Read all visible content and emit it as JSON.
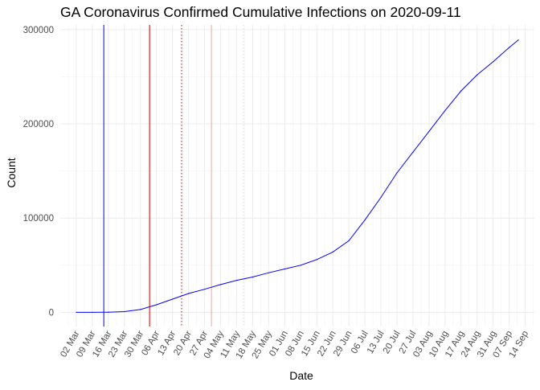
{
  "chart_data": {
    "type": "line",
    "title": "GA Coronavirus Confirmed Cumulative Infections on 2020-09-11",
    "xlabel": "Date",
    "ylabel": "Count",
    "x_range": [
      "2020-02-24",
      "2020-09-18"
    ],
    "ylim": [
      -15000,
      305000
    ],
    "grid": true,
    "legend": "none",
    "x_ticks": [
      {
        "date": "2020-03-02",
        "label": "02 Mar"
      },
      {
        "date": "2020-03-09",
        "label": "09 Mar"
      },
      {
        "date": "2020-03-16",
        "label": "16 Mar"
      },
      {
        "date": "2020-03-23",
        "label": "23 Mar"
      },
      {
        "date": "2020-03-30",
        "label": "30 Mar"
      },
      {
        "date": "2020-04-06",
        "label": "06 Apr"
      },
      {
        "date": "2020-04-13",
        "label": "13 Apr"
      },
      {
        "date": "2020-04-20",
        "label": "20 Apr"
      },
      {
        "date": "2020-04-27",
        "label": "27 Apr"
      },
      {
        "date": "2020-05-04",
        "label": "04 May"
      },
      {
        "date": "2020-05-11",
        "label": "11 May"
      },
      {
        "date": "2020-05-18",
        "label": "18 May"
      },
      {
        "date": "2020-05-25",
        "label": "25 May"
      },
      {
        "date": "2020-06-01",
        "label": "01 Jun"
      },
      {
        "date": "2020-06-08",
        "label": "08 Jun"
      },
      {
        "date": "2020-06-15",
        "label": "15 Jun"
      },
      {
        "date": "2020-06-22",
        "label": "22 Jun"
      },
      {
        "date": "2020-06-29",
        "label": "29 Jun"
      },
      {
        "date": "2020-07-06",
        "label": "06 Jul"
      },
      {
        "date": "2020-07-13",
        "label": "13 Jul"
      },
      {
        "date": "2020-07-20",
        "label": "20 Jul"
      },
      {
        "date": "2020-07-27",
        "label": "27 Jul"
      },
      {
        "date": "2020-08-03",
        "label": "03 Aug"
      },
      {
        "date": "2020-08-10",
        "label": "10 Aug"
      },
      {
        "date": "2020-08-17",
        "label": "17 Aug"
      },
      {
        "date": "2020-08-24",
        "label": "24 Aug"
      },
      {
        "date": "2020-08-31",
        "label": "31 Aug"
      },
      {
        "date": "2020-09-07",
        "label": "07 Sep"
      },
      {
        "date": "2020-09-14",
        "label": "14 Sep"
      }
    ],
    "y_ticks": [
      {
        "value": 0,
        "label": "0"
      },
      {
        "value": 100000,
        "label": "100000"
      },
      {
        "value": 200000,
        "label": "200000"
      },
      {
        "value": 300000,
        "label": "300000"
      }
    ],
    "series": [
      {
        "color": "#0000ff",
        "x": [
          "2020-03-02",
          "2020-03-09",
          "2020-03-16",
          "2020-03-23",
          "2020-03-30",
          "2020-04-06",
          "2020-04-13",
          "2020-04-20",
          "2020-04-27",
          "2020-05-04",
          "2020-05-11",
          "2020-05-18",
          "2020-05-25",
          "2020-06-01",
          "2020-06-08",
          "2020-06-15",
          "2020-06-22",
          "2020-06-29",
          "2020-07-06",
          "2020-07-13",
          "2020-07-20",
          "2020-07-27",
          "2020-08-03",
          "2020-08-10",
          "2020-08-17",
          "2020-08-24",
          "2020-08-31",
          "2020-09-07",
          "2020-09-11"
        ],
        "y": [
          0,
          20,
          150,
          800,
          3000,
          8000,
          14000,
          20000,
          24500,
          29500,
          34000,
          37500,
          42000,
          46000,
          50000,
          56000,
          64000,
          76000,
          98000,
          122000,
          148000,
          170000,
          192000,
          214000,
          235000,
          252000,
          266000,
          281000,
          289000
        ]
      }
    ],
    "annotations": [
      {
        "type": "vline",
        "date": "2020-03-14",
        "color": "#0000ff",
        "style": "solid"
      },
      {
        "type": "vline",
        "date": "2020-04-03",
        "color": "#cc0000",
        "style": "solid"
      },
      {
        "type": "vline",
        "date": "2020-04-17",
        "color": "#cc0000",
        "style": "dotted"
      },
      {
        "type": "vline",
        "date": "2020-04-30",
        "color": "#f4a6a6",
        "style": "solid"
      },
      {
        "type": "vline",
        "date": "2020-05-14",
        "color": "#d9d9d9",
        "style": "dotted"
      }
    ]
  }
}
